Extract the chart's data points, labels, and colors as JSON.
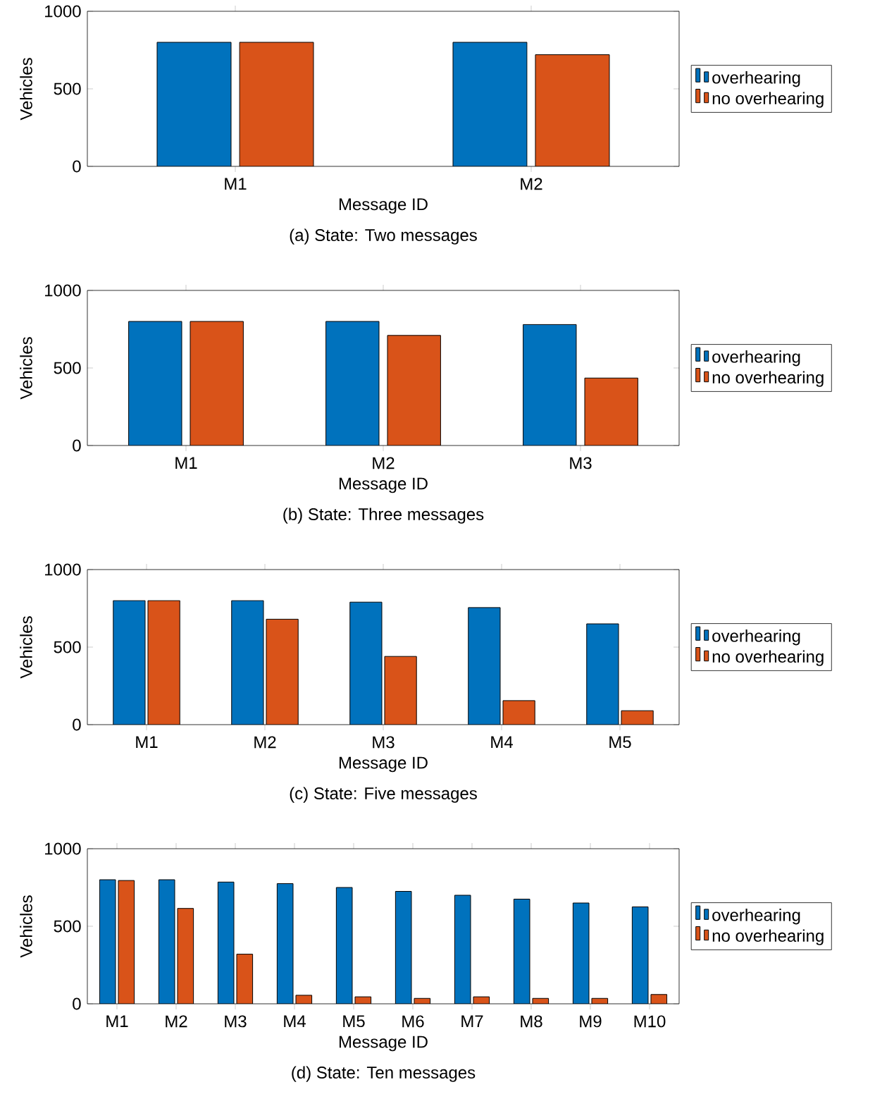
{
  "chart_data": [
    {
      "type": "bar",
      "title": "(a) State: Two messages",
      "xlabel": "Message ID",
      "ylabel": "Vehicles",
      "categories": [
        "M1",
        "M2"
      ],
      "ylim": [
        0,
        1000
      ],
      "yticks": [
        0,
        500,
        1000
      ],
      "legend": "right",
      "series": [
        {
          "name": "overhearing",
          "color": "#0072bd",
          "values": [
            800,
            800
          ]
        },
        {
          "name": "no overhearing",
          "color": "#d95319",
          "values": [
            800,
            720
          ]
        }
      ]
    },
    {
      "type": "bar",
      "title": "(b) State: Three messages",
      "xlabel": "Message ID",
      "ylabel": "Vehicles",
      "categories": [
        "M1",
        "M2",
        "M3"
      ],
      "ylim": [
        0,
        1000
      ],
      "yticks": [
        0,
        500,
        1000
      ],
      "legend": "right",
      "series": [
        {
          "name": "overhearing",
          "color": "#0072bd",
          "values": [
            800,
            800,
            780
          ]
        },
        {
          "name": "no overhearing",
          "color": "#d95319",
          "values": [
            800,
            710,
            435
          ]
        }
      ]
    },
    {
      "type": "bar",
      "title": "(c) State: Five messages",
      "xlabel": "Message ID",
      "ylabel": "Vehicles",
      "categories": [
        "M1",
        "M2",
        "M3",
        "M4",
        "M5"
      ],
      "ylim": [
        0,
        1000
      ],
      "yticks": [
        0,
        500,
        1000
      ],
      "legend": "right",
      "series": [
        {
          "name": "overhearing",
          "color": "#0072bd",
          "values": [
            800,
            800,
            790,
            755,
            650
          ]
        },
        {
          "name": "no overhearing",
          "color": "#d95319",
          "values": [
            800,
            680,
            440,
            155,
            90
          ]
        }
      ]
    },
    {
      "type": "bar",
      "title": "(d) State: Ten messages",
      "xlabel": "Message ID",
      "ylabel": "Vehicles",
      "categories": [
        "M1",
        "M2",
        "M3",
        "M4",
        "M5",
        "M6",
        "M7",
        "M8",
        "M9",
        "M10"
      ],
      "ylim": [
        0,
        1000
      ],
      "yticks": [
        0,
        500,
        1000
      ],
      "legend": "right",
      "series": [
        {
          "name": "overhearing",
          "color": "#0072bd",
          "values": [
            800,
            800,
            785,
            775,
            750,
            725,
            700,
            675,
            650,
            625
          ]
        },
        {
          "name": "no overhearing",
          "color": "#d95319",
          "values": [
            795,
            615,
            320,
            55,
            45,
            35,
            45,
            35,
            35,
            60
          ]
        }
      ]
    }
  ]
}
